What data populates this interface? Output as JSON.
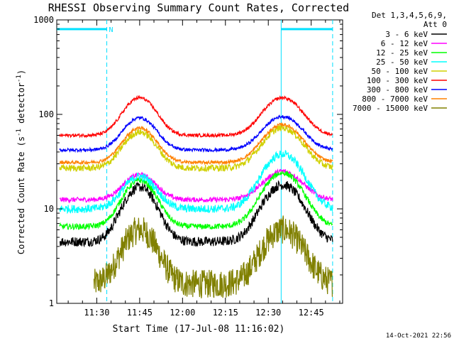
{
  "chart_data": {
    "type": "line",
    "title": "RHESSI Observing Summary Count Rates, Corrected",
    "xlabel": "Start Time (17-Jul-08 11:16:02)",
    "ylabel_main": "Corrected Count Rate (s",
    "ylabel_sup1": "-1",
    "ylabel_mid": " detector",
    "ylabel_sup2": "-1",
    "ylabel_end": ")",
    "y_scale": "log",
    "ylim": [
      1,
      1000
    ],
    "xlim_minutes": [
      0,
      100
    ],
    "x_ticks": [
      {
        "m": 14,
        "label": "11:30"
      },
      {
        "m": 29,
        "label": "11:45"
      },
      {
        "m": 44,
        "label": "12:00"
      },
      {
        "m": 59,
        "label": "12:15"
      },
      {
        "m": 74,
        "label": "12:30"
      },
      {
        "m": 89,
        "label": "12:45"
      }
    ],
    "y_ticks": [
      {
        "v": 1,
        "label": "1"
      },
      {
        "v": 10,
        "label": "10"
      },
      {
        "v": 100,
        "label": "100"
      },
      {
        "v": 1000,
        "label": "1000"
      }
    ],
    "legend_header": [
      "Det 1,3,4,5,6,9,",
      "Att 0"
    ],
    "legend_position": "top-right outside",
    "footer_timestamp": "14-Oct-2021 22:56",
    "markers": {
      "night_intervals": [
        [
          0,
          17.5
        ],
        [
          78.5,
          96.5
        ]
      ],
      "saa_label": "N",
      "attenuator_line_m": 78.5,
      "dashed_lines_m": [
        17.5,
        96.5
      ]
    },
    "grid": false,
    "series": [
      {
        "name": "3 - 6 keV",
        "color": "#000000",
        "start": 1,
        "base": 4.5,
        "peak1": 17,
        "peak2": 18,
        "noise": 0.12
      },
      {
        "name": "6 - 12 keV",
        "color": "#ff00ff",
        "start": 1,
        "base": 12.5,
        "peak1": 23,
        "peak2": 25,
        "noise": 0.06
      },
      {
        "name": "12 - 25 keV",
        "color": "#00ff00",
        "start": 1,
        "base": 6.5,
        "peak1": 20,
        "peak2": 24,
        "noise": 0.07
      },
      {
        "name": "25 - 50 keV",
        "color": "#00ffff",
        "start": 1,
        "base": 10,
        "peak1": 22,
        "peak2": 38,
        "noise": 0.1
      },
      {
        "name": "50 - 100 keV",
        "color": "#d0d000",
        "start": 1,
        "base": 27,
        "peak1": 65,
        "peak2": 72,
        "noise": 0.08
      },
      {
        "name": "100 - 300 keV",
        "color": "#ff0000",
        "start": 1,
        "base": 60,
        "peak1": 150,
        "peak2": 150,
        "noise": 0.04
      },
      {
        "name": "300 - 800 keV",
        "color": "#0000ff",
        "start": 1,
        "base": 42,
        "peak1": 92,
        "peak2": 95,
        "noise": 0.04
      },
      {
        "name": "800 - 7000 keV",
        "color": "#ff8000",
        "start": 1,
        "base": 31,
        "peak1": 72,
        "peak2": 78,
        "noise": 0.04
      },
      {
        "name": "7000 - 15000 keV",
        "color": "#808000",
        "start": 13,
        "base": 1.6,
        "peak1": 6,
        "peak2": 6,
        "noise": 0.35
      }
    ]
  }
}
